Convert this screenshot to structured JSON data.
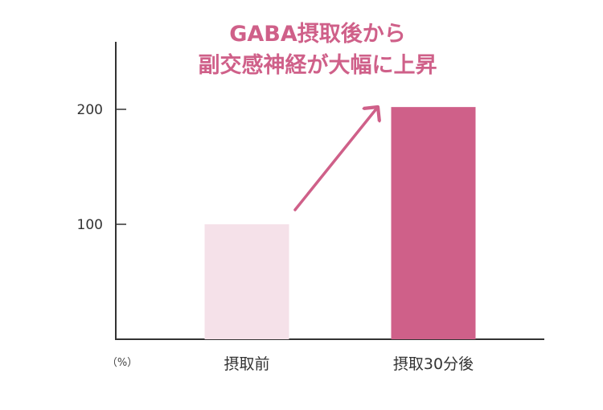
{
  "chart_data": {
    "type": "bar",
    "title_lines": [
      "GABA摂取後から",
      "副交感神経が大幅に上昇"
    ],
    "categories": [
      "摂取前",
      "摂取30分後"
    ],
    "values": [
      100,
      202
    ],
    "ylabel": "（%）",
    "yticks": [
      100,
      200
    ],
    "ylim": [
      0,
      250
    ],
    "grid": false,
    "legend": "none",
    "annotation": "arrow-up-right"
  },
  "colors": {
    "accent": "#cf6089",
    "bar_before": "#f5e1e9",
    "bar_after": "#cf6089",
    "axis": "#333333",
    "tick_text": "#333333"
  }
}
